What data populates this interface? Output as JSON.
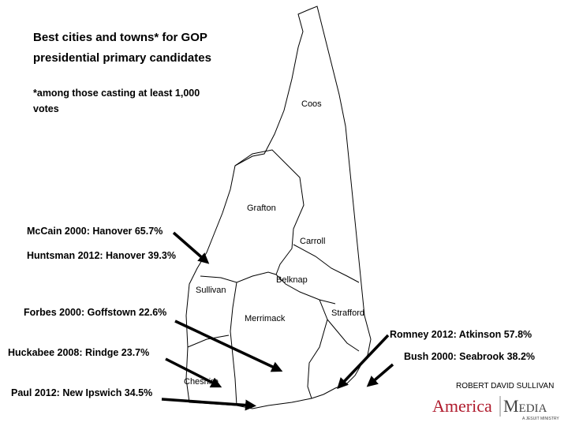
{
  "title": {
    "lines": [
      "Best cities and towns* for GOP",
      "presidential primary candidates"
    ],
    "footnote": [
      "*among those casting at least 1,000",
      "votes"
    ]
  },
  "counties": [
    "Coos",
    "Grafton",
    "Carroll",
    "Belknap",
    "Sullivan",
    "Merrimack",
    "Strafford",
    "Cheshire"
  ],
  "annotations": [
    "McCain 2000: Hanover 65.7%",
    "Huntsman 2012: Hanover 39.3%",
    "Forbes 2000: Goffstown 22.6%",
    "Huckabee 2008: Rindge 23.7%",
    "Paul 2012: New Ipswich 34.5%",
    "Romney 2012: Atkinson 57.8%",
    "Bush 2000: Seabrook 38.2%"
  ],
  "credit": "ROBERT DAVID SULLIVAN",
  "logo": {
    "left": "America",
    "right": "Media",
    "tagline": "A JESUIT MINISTRY"
  }
}
